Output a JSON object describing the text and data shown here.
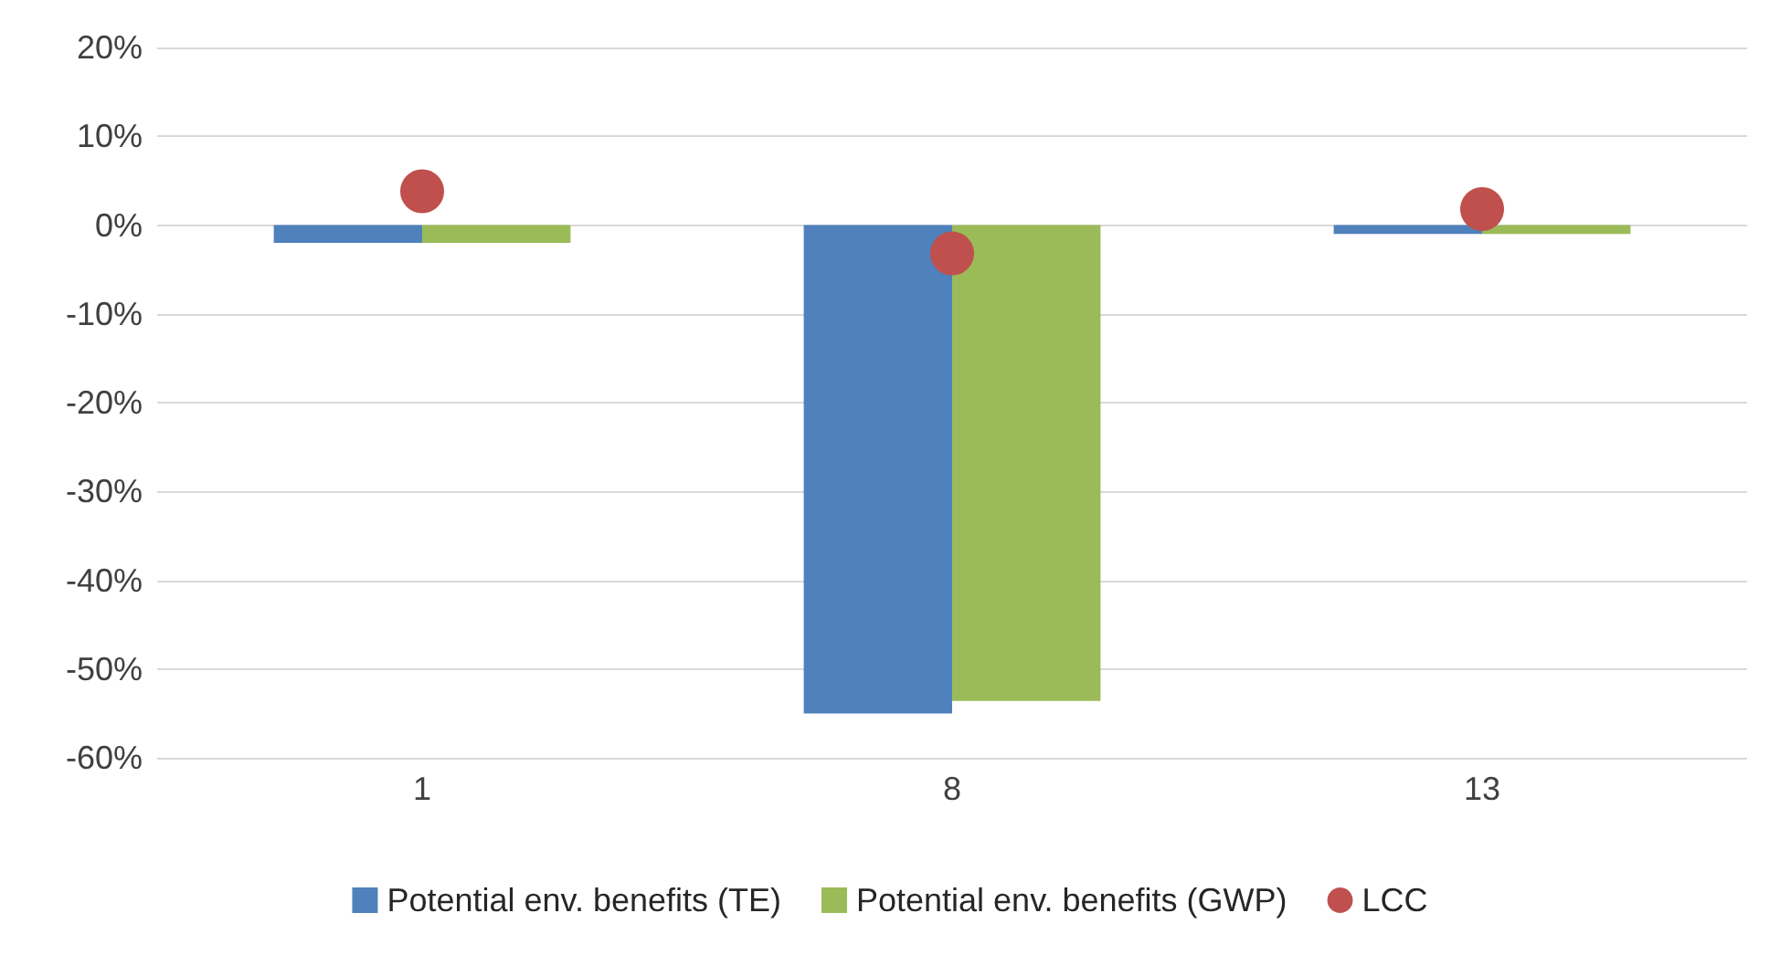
{
  "chart_data": {
    "type": "bar",
    "categories": [
      "1",
      "8",
      "13"
    ],
    "series": [
      {
        "name": "Potential env. benefits (TE)",
        "color": "#4f81bd",
        "values": [
          -2,
          -55,
          -1
        ]
      },
      {
        "name": "Potential env. benefits (GWP)",
        "color": "#9bbb59",
        "values": [
          -2,
          -53.6,
          -1
        ]
      },
      {
        "name": "LCC",
        "type": "scatter",
        "color": "#c0504d",
        "values": [
          3.8,
          -3.2,
          1.8
        ],
        "marker": "circle"
      }
    ],
    "ylim": [
      -60,
      20
    ],
    "yticks": [
      {
        "value": -60,
        "label": "-60%"
      },
      {
        "value": -50,
        "label": "-50%"
      },
      {
        "value": -40,
        "label": "-40%"
      },
      {
        "value": -30,
        "label": "-30%"
      },
      {
        "value": -20,
        "label": "-20%"
      },
      {
        "value": -10,
        "label": "-10%"
      },
      {
        "value": 0,
        "label": "0%"
      },
      {
        "value": 10,
        "label": "10%"
      },
      {
        "value": 20,
        "label": "20%"
      }
    ],
    "grid": "y",
    "legend": "bottom"
  }
}
